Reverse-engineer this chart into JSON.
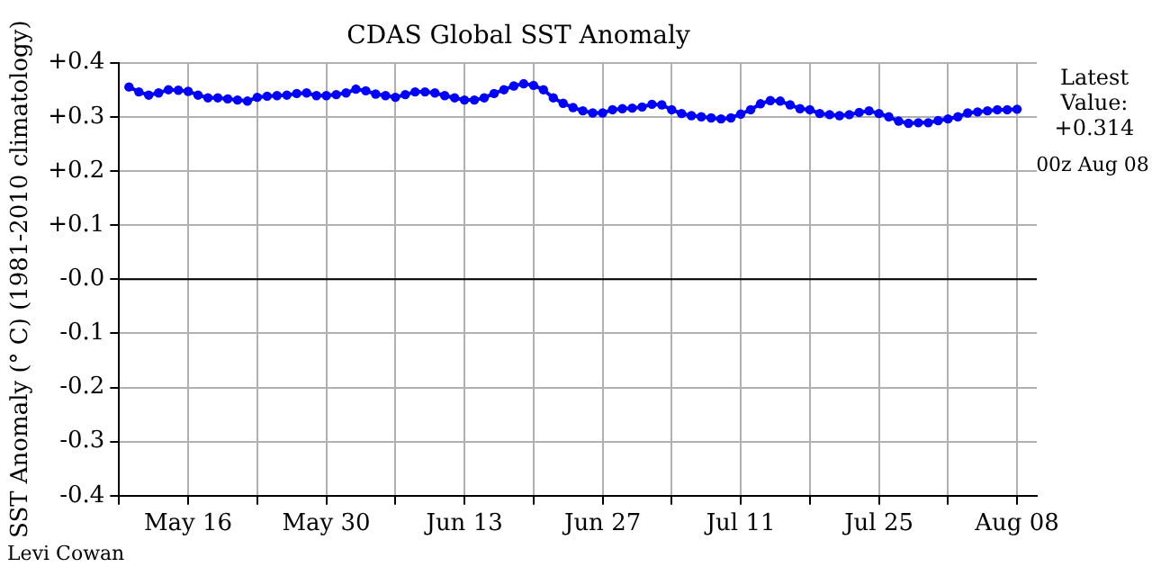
{
  "chart_data": {
    "type": "line",
    "title": "CDAS Global SST Anomaly",
    "ylabel": "SST Anomaly (° C) (1981-2010 climatology)",
    "annotations": [
      "Latest Value: +0.314",
      "00z Aug 08",
      "Levi Cowan"
    ],
    "x": [
      "--05-10",
      "--05-11",
      "--05-12",
      "--05-13",
      "--05-14",
      "--05-15",
      "--05-16",
      "--05-17",
      "--05-18",
      "--05-19",
      "--05-20",
      "--05-21",
      "--05-22",
      "--05-23",
      "--05-24",
      "--05-25",
      "--05-26",
      "--05-27",
      "--05-28",
      "--05-29",
      "--05-30",
      "--05-31",
      "--06-01",
      "--06-02",
      "--06-03",
      "--06-04",
      "--06-05",
      "--06-06",
      "--06-07",
      "--06-08",
      "--06-09",
      "--06-10",
      "--06-11",
      "--06-12",
      "--06-13",
      "--06-14",
      "--06-15",
      "--06-16",
      "--06-17",
      "--06-18",
      "--06-19",
      "--06-20",
      "--06-21",
      "--06-22",
      "--06-23",
      "--06-24",
      "--06-25",
      "--06-26",
      "--06-27",
      "--06-28",
      "--06-29",
      "--06-30",
      "--07-01",
      "--07-02",
      "--07-03",
      "--07-04",
      "--07-05",
      "--07-06",
      "--07-07",
      "--07-08",
      "--07-09",
      "--07-10",
      "--07-11",
      "--07-12",
      "--07-13",
      "--07-14",
      "--07-15",
      "--07-16",
      "--07-17",
      "--07-18",
      "--07-19",
      "--07-20",
      "--07-21",
      "--07-22",
      "--07-23",
      "--07-24",
      "--07-25",
      "--07-26",
      "--07-27",
      "--07-28",
      "--07-29",
      "--07-30",
      "--07-31",
      "--08-01",
      "--08-02",
      "--08-03",
      "--08-04",
      "--08-05",
      "--08-06",
      "--08-07",
      "--08-08"
    ],
    "series": [
      {
        "color": "#0000ff",
        "values": [
          0.355,
          0.346,
          0.34,
          0.344,
          0.35,
          0.349,
          0.347,
          0.34,
          0.335,
          0.335,
          0.333,
          0.331,
          0.329,
          0.336,
          0.338,
          0.339,
          0.34,
          0.343,
          0.344,
          0.339,
          0.339,
          0.341,
          0.344,
          0.351,
          0.348,
          0.342,
          0.339,
          0.336,
          0.341,
          0.346,
          0.346,
          0.344,
          0.339,
          0.335,
          0.331,
          0.331,
          0.335,
          0.343,
          0.35,
          0.357,
          0.361,
          0.358,
          0.35,
          0.335,
          0.325,
          0.317,
          0.311,
          0.307,
          0.307,
          0.313,
          0.315,
          0.316,
          0.318,
          0.323,
          0.322,
          0.313,
          0.306,
          0.302,
          0.3,
          0.298,
          0.296,
          0.298,
          0.305,
          0.313,
          0.324,
          0.33,
          0.329,
          0.322,
          0.315,
          0.313,
          0.306,
          0.304,
          0.302,
          0.304,
          0.308,
          0.311,
          0.306,
          0.3,
          0.292,
          0.288,
          0.289,
          0.289,
          0.293,
          0.296,
          0.3,
          0.307,
          0.309,
          0.311,
          0.313,
          0.313,
          0.314
        ]
      }
    ],
    "xlim": [
      "--05-09",
      "--08-10"
    ],
    "xticks": [
      {
        "value": "--05-09",
        "label": null
      },
      {
        "value": "--05-16",
        "label": "May 16"
      },
      {
        "value": "--05-23",
        "label": null
      },
      {
        "value": "--05-30",
        "label": "May 30"
      },
      {
        "value": "--06-06",
        "label": null
      },
      {
        "value": "--06-13",
        "label": "Jun 13"
      },
      {
        "value": "--06-20",
        "label": null
      },
      {
        "value": "--06-27",
        "label": "Jun 27"
      },
      {
        "value": "--07-04",
        "label": null
      },
      {
        "value": "--07-11",
        "label": "Jul 11"
      },
      {
        "value": "--07-18",
        "label": null
      },
      {
        "value": "--07-25",
        "label": "Jul 25"
      },
      {
        "value": "--08-01",
        "label": null
      },
      {
        "value": "--08-08",
        "label": "Aug 08"
      }
    ],
    "ylim": [
      -0.4,
      0.4
    ],
    "yticks": [
      {
        "value": -0.4,
        "label": "-0.4"
      },
      {
        "value": -0.3,
        "label": "-0.3"
      },
      {
        "value": -0.2,
        "label": "-0.2"
      },
      {
        "value": -0.1,
        "label": "-0.1"
      },
      {
        "value": 0,
        "label": "-0.0"
      },
      {
        "value": 0.1,
        "label": "+0.1"
      },
      {
        "value": 0.2,
        "label": "+0.2"
      },
      {
        "value": 0.3,
        "label": "+0.3"
      },
      {
        "value": 0.4,
        "label": "+0.4"
      }
    ],
    "ref_lines": [
      {
        "axis": "y",
        "value": 0,
        "color": "#000000"
      }
    ],
    "grid": true,
    "marker": "circle",
    "line_style": "solid",
    "legend": false
  }
}
